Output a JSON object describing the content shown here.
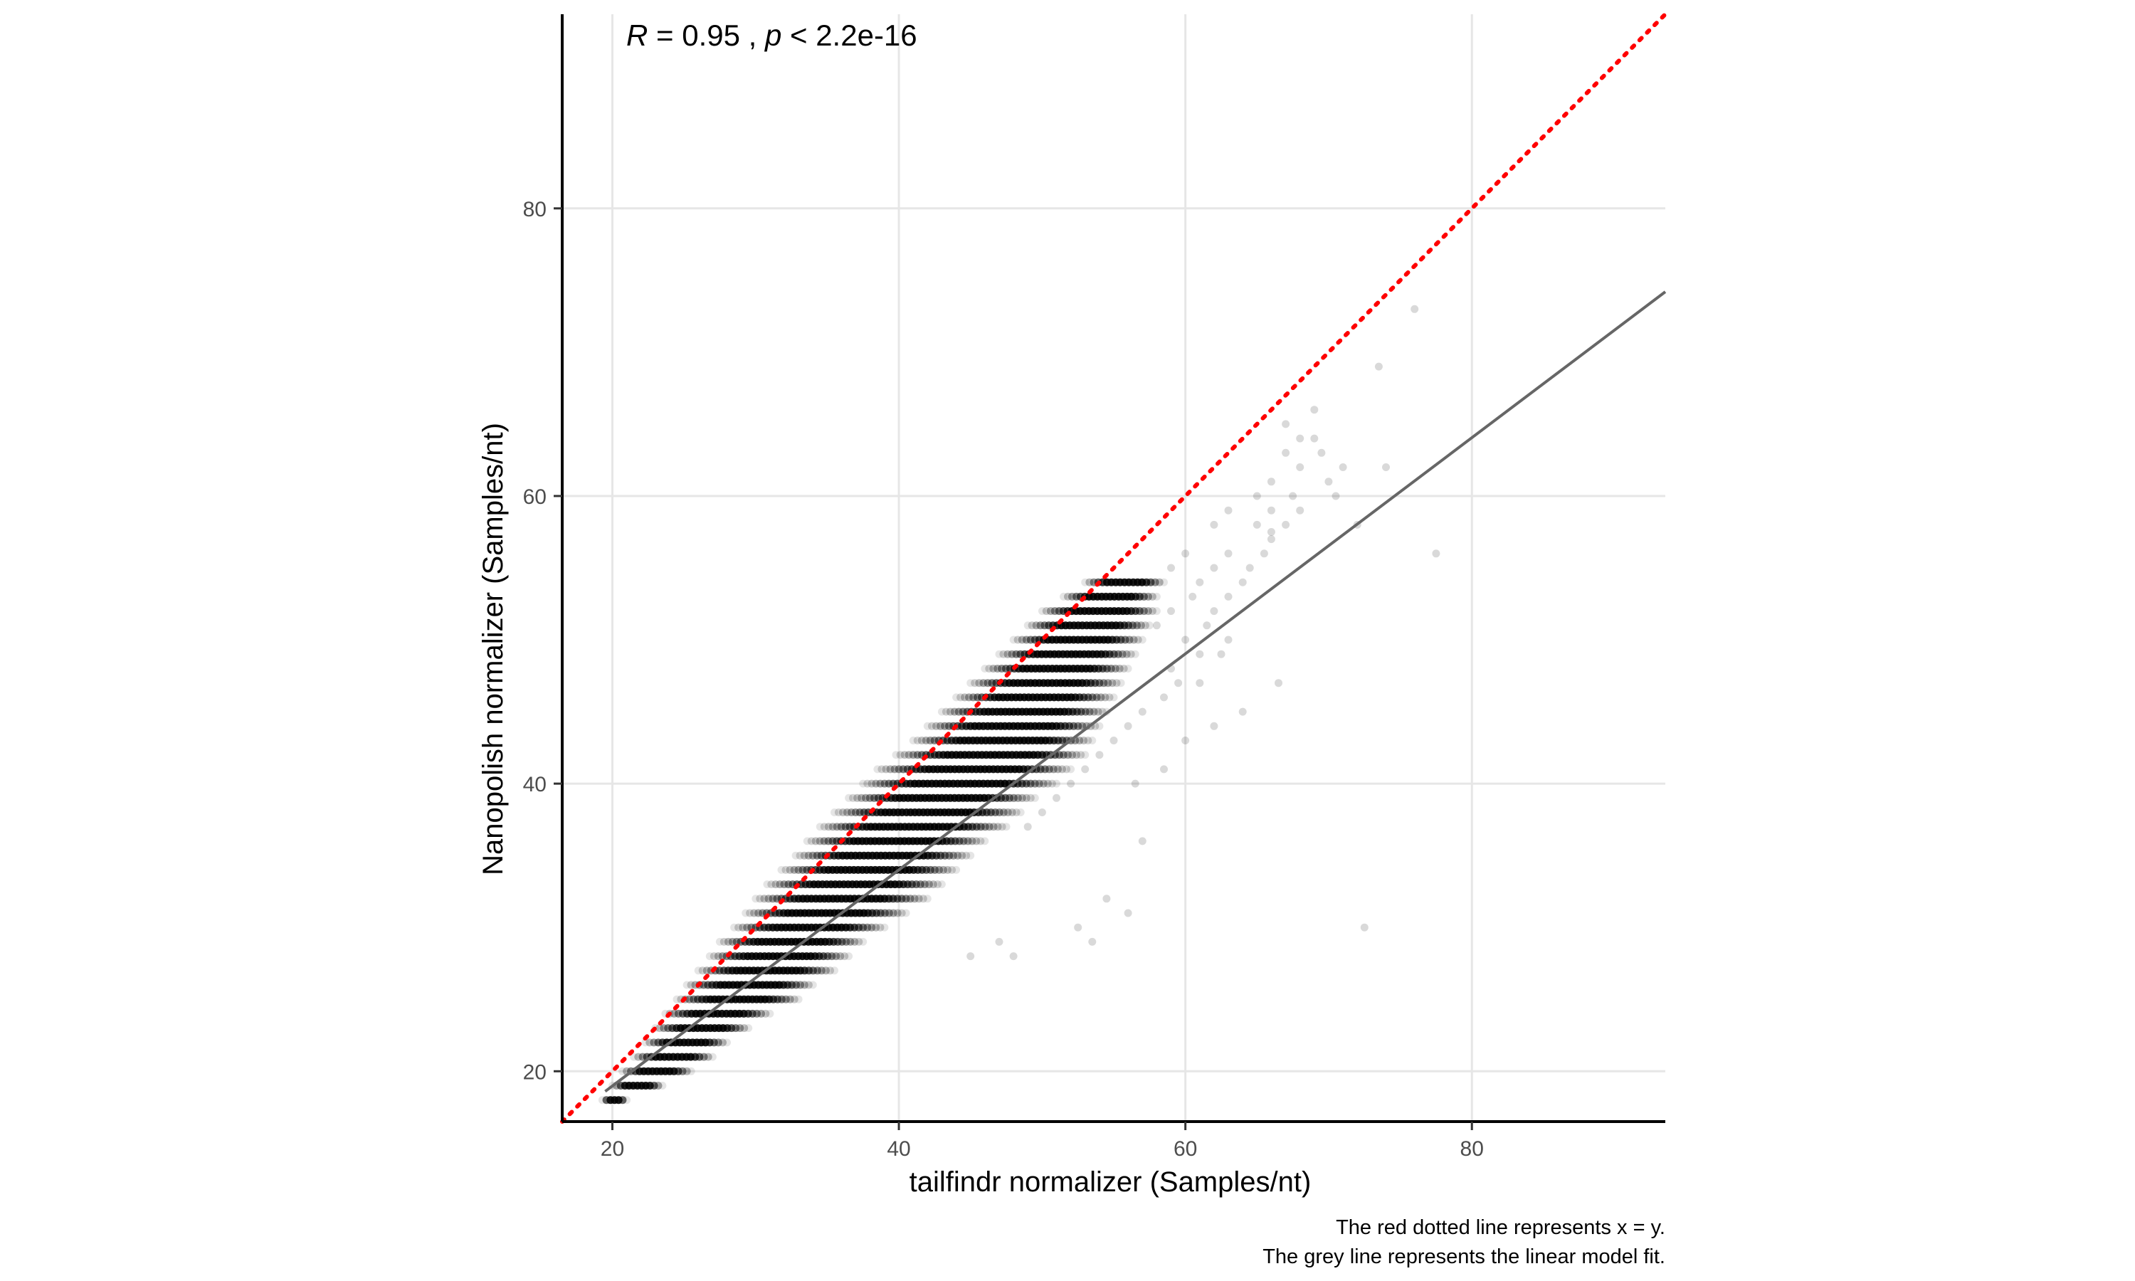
{
  "chart_data": {
    "type": "scatter",
    "xlabel": "tailfindr normalizer (Samples/nt)",
    "ylabel": "Nanopolish normalizer (Samples/nt)",
    "xlim": [
      16.5,
      93.5
    ],
    "ylim": [
      16.5,
      93.5
    ],
    "x_ticks": [
      20,
      40,
      60,
      80
    ],
    "y_ticks": [
      20,
      40,
      60,
      80
    ],
    "grid": true,
    "annotation": {
      "r_symbol": "R",
      "r_text": " = 0.95 , ",
      "p_symbol": "p",
      "p_text": " < 2.2e-16"
    },
    "reference_line": {
      "slope": 1,
      "intercept": 0,
      "color": "#ff0000",
      "style": "dotted"
    },
    "fit_line": {
      "x": [
        19.5,
        93.5
      ],
      "y": [
        18.6,
        74.2
      ],
      "color": "#666666"
    },
    "point_alpha": 0.1,
    "point_color": "#000000",
    "band_rows": [
      {
        "y": 18,
        "xmin": 19.3,
        "xmax": 21.0
      },
      {
        "y": 19,
        "xmin": 20.0,
        "xmax": 23.5
      },
      {
        "y": 20,
        "xmin": 20.7,
        "xmax": 25.5
      },
      {
        "y": 21,
        "xmin": 21.5,
        "xmax": 27.0
      },
      {
        "y": 22,
        "xmin": 22.3,
        "xmax": 28.0
      },
      {
        "y": 23,
        "xmin": 23.0,
        "xmax": 29.5
      },
      {
        "y": 24,
        "xmin": 23.7,
        "xmax": 31.0
      },
      {
        "y": 25,
        "xmin": 24.5,
        "xmax": 33.0
      },
      {
        "y": 26,
        "xmin": 25.2,
        "xmax": 34.0
      },
      {
        "y": 27,
        "xmin": 26.0,
        "xmax": 35.5
      },
      {
        "y": 28,
        "xmin": 26.8,
        "xmax": 36.5
      },
      {
        "y": 29,
        "xmin": 27.5,
        "xmax": 37.5
      },
      {
        "y": 30,
        "xmin": 28.5,
        "xmax": 39.0
      },
      {
        "y": 31,
        "xmin": 29.3,
        "xmax": 40.5
      },
      {
        "y": 32,
        "xmin": 30.0,
        "xmax": 42.0
      },
      {
        "y": 33,
        "xmin": 30.8,
        "xmax": 43.0
      },
      {
        "y": 34,
        "xmin": 31.8,
        "xmax": 44.0
      },
      {
        "y": 35,
        "xmin": 32.8,
        "xmax": 45.0
      },
      {
        "y": 36,
        "xmin": 33.6,
        "xmax": 46.0
      },
      {
        "y": 37,
        "xmin": 34.5,
        "xmax": 47.5
      },
      {
        "y": 38,
        "xmin": 35.5,
        "xmax": 48.5
      },
      {
        "y": 39,
        "xmin": 36.5,
        "xmax": 49.5
      },
      {
        "y": 40,
        "xmin": 37.5,
        "xmax": 51.0
      },
      {
        "y": 41,
        "xmin": 38.5,
        "xmax": 52.0
      },
      {
        "y": 42,
        "xmin": 39.8,
        "xmax": 53.0
      },
      {
        "y": 43,
        "xmin": 41.0,
        "xmax": 53.5
      },
      {
        "y": 44,
        "xmin": 42.0,
        "xmax": 54.0
      },
      {
        "y": 45,
        "xmin": 43.0,
        "xmax": 54.5
      },
      {
        "y": 46,
        "xmin": 44.0,
        "xmax": 55.0
      },
      {
        "y": 47,
        "xmin": 45.0,
        "xmax": 55.5
      },
      {
        "y": 48,
        "xmin": 46.0,
        "xmax": 56.0
      },
      {
        "y": 49,
        "xmin": 47.0,
        "xmax": 56.5
      },
      {
        "y": 50,
        "xmin": 48.0,
        "xmax": 57.0
      },
      {
        "y": 51,
        "xmin": 49.0,
        "xmax": 57.5
      },
      {
        "y": 52,
        "xmin": 50.0,
        "xmax": 58.0
      },
      {
        "y": 53,
        "xmin": 51.5,
        "xmax": 58.0
      },
      {
        "y": 54,
        "xmin": 53.0,
        "xmax": 58.5
      }
    ],
    "outliers": [
      [
        49,
        37
      ],
      [
        50,
        38
      ],
      [
        51,
        39
      ],
      [
        52,
        40
      ],
      [
        53,
        41
      ],
      [
        54,
        42
      ],
      [
        55,
        43
      ],
      [
        56,
        44
      ],
      [
        57,
        45
      ],
      [
        58.5,
        46
      ],
      [
        59.5,
        47
      ],
      [
        61,
        47
      ],
      [
        59,
        48
      ],
      [
        61,
        49
      ],
      [
        62.5,
        49
      ],
      [
        60,
        50
      ],
      [
        63,
        50
      ],
      [
        58,
        51
      ],
      [
        61.5,
        51
      ],
      [
        59,
        52
      ],
      [
        62,
        52
      ],
      [
        60.5,
        53
      ],
      [
        63,
        53
      ],
      [
        61,
        54
      ],
      [
        64,
        54
      ],
      [
        59,
        55
      ],
      [
        62,
        55
      ],
      [
        64.5,
        55
      ],
      [
        60,
        56
      ],
      [
        63,
        56
      ],
      [
        65.5,
        56
      ],
      [
        66,
        57
      ],
      [
        62,
        58
      ],
      [
        65,
        58
      ],
      [
        67,
        58
      ],
      [
        63,
        59
      ],
      [
        66,
        59
      ],
      [
        68,
        59
      ],
      [
        65,
        60
      ],
      [
        67.5,
        60
      ],
      [
        66,
        61
      ],
      [
        70,
        61
      ],
      [
        68,
        62
      ],
      [
        71,
        62
      ],
      [
        67,
        63
      ],
      [
        69.5,
        63
      ],
      [
        68,
        64
      ],
      [
        69,
        64
      ],
      [
        67,
        65
      ],
      [
        69,
        66
      ],
      [
        73.5,
        69
      ],
      [
        76,
        73
      ],
      [
        77.5,
        56
      ],
      [
        72.5,
        30
      ],
      [
        56,
        31
      ],
      [
        52.5,
        30
      ],
      [
        45,
        28
      ],
      [
        48,
        28
      ],
      [
        53.5,
        29
      ],
      [
        57,
        36
      ],
      [
        58.5,
        41
      ],
      [
        62,
        44
      ],
      [
        64,
        45
      ],
      [
        66.5,
        47
      ],
      [
        72,
        58
      ],
      [
        74,
        62
      ],
      [
        54.5,
        32
      ],
      [
        47,
        29
      ],
      [
        56.5,
        40
      ],
      [
        60,
        43
      ],
      [
        66,
        57.5
      ],
      [
        70.5,
        60
      ]
    ],
    "caption_lines": [
      "The red dotted line represents x = y.",
      "The grey line represents the linear model fit."
    ]
  }
}
